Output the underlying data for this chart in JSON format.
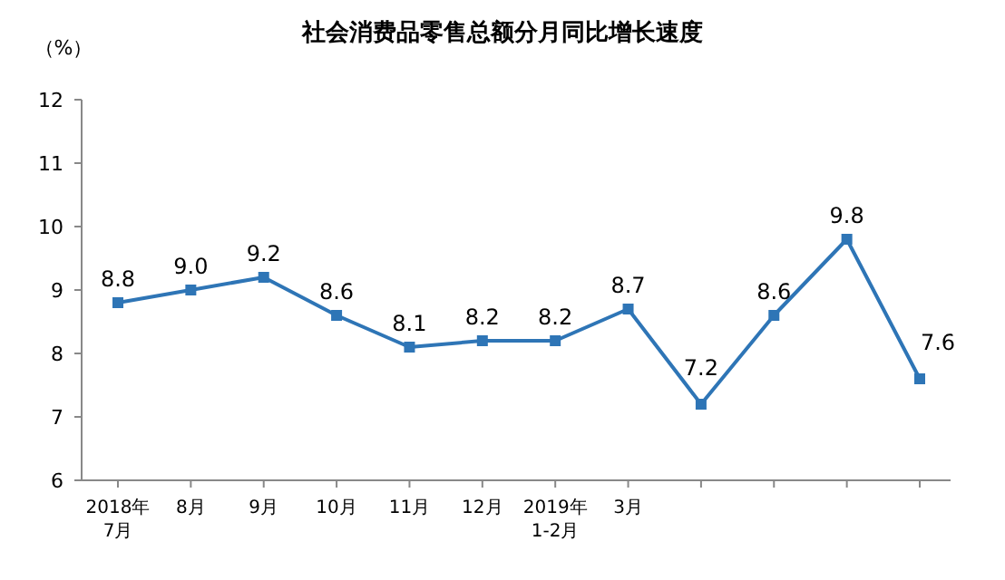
{
  "chart_data": {
    "type": "line",
    "title": "社会消费品零售总额分月同比增长速度",
    "ylabel": "（%）",
    "categories": [
      "2018年\n7月",
      "8月",
      "9月",
      "10月",
      "11月",
      "12月",
      "2019年\n1-2月",
      "3月",
      null,
      null,
      null,
      null
    ],
    "series": [
      {
        "color": "#2e75b6",
        "values": [
          8.8,
          9.0,
          9.2,
          8.6,
          8.1,
          8.2,
          8.2,
          8.7,
          7.2,
          8.6,
          9.8,
          7.6
        ],
        "value_labels": [
          "8.8",
          "9.0",
          "9.2",
          "8.6",
          "8.1",
          "8.2",
          "8.2",
          "8.7",
          "7.2",
          "8.6",
          "9.8",
          "7.6"
        ]
      }
    ],
    "ylim": [
      6,
      12
    ],
    "yticks": [
      6,
      7,
      8,
      9,
      10,
      11,
      12
    ],
    "marker": "square",
    "line_style": "solid"
  }
}
